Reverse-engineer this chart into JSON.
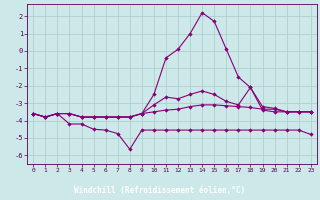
{
  "xlabel": "Windchill (Refroidissement éolien,°C)",
  "background_color": "#cce8e8",
  "plot_bg_color": "#cce8e8",
  "grid_color": "#aacccc",
  "line_color": "#880077",
  "label_bg_color": "#660066",
  "label_text_color": "#ffffff",
  "xlim_min": -0.5,
  "xlim_max": 23.5,
  "ylim_min": -6.5,
  "ylim_max": 2.7,
  "xticks": [
    0,
    1,
    2,
    3,
    4,
    5,
    6,
    7,
    8,
    9,
    10,
    11,
    12,
    13,
    14,
    15,
    16,
    17,
    18,
    19,
    20,
    21,
    22,
    23
  ],
  "yticks": [
    -6,
    -5,
    -4,
    -3,
    -2,
    -1,
    0,
    1,
    2
  ],
  "line1_y": [
    -3.6,
    -3.8,
    -3.6,
    -3.6,
    -3.8,
    -3.8,
    -3.8,
    -3.8,
    -3.8,
    -3.6,
    -2.5,
    -0.4,
    0.1,
    1.0,
    2.2,
    1.7,
    0.1,
    -1.5,
    -2.1,
    -3.4,
    -3.5,
    -3.5,
    -3.5,
    -3.5
  ],
  "line2_y": [
    -3.6,
    -3.8,
    -3.6,
    -3.6,
    -3.8,
    -3.8,
    -3.8,
    -3.8,
    -3.8,
    -3.6,
    -3.1,
    -2.65,
    -2.75,
    -2.5,
    -2.3,
    -2.5,
    -2.9,
    -3.1,
    -2.1,
    -3.2,
    -3.3,
    -3.5,
    -3.5,
    -3.5
  ],
  "line3_y": [
    -3.6,
    -3.8,
    -3.6,
    -3.6,
    -3.8,
    -3.8,
    -3.8,
    -3.8,
    -3.8,
    -3.6,
    -3.5,
    -3.4,
    -3.35,
    -3.2,
    -3.1,
    -3.1,
    -3.15,
    -3.2,
    -3.25,
    -3.35,
    -3.35,
    -3.5,
    -3.5,
    -3.5
  ],
  "line4_y": [
    -3.6,
    -3.8,
    -3.6,
    -4.2,
    -4.2,
    -4.5,
    -4.55,
    -4.75,
    -5.65,
    -4.55,
    -4.55,
    -4.55,
    -4.55,
    -4.55,
    -4.55,
    -4.55,
    -4.55,
    -4.55,
    -4.55,
    -4.55,
    -4.55,
    -4.55,
    -4.55,
    -4.8
  ]
}
